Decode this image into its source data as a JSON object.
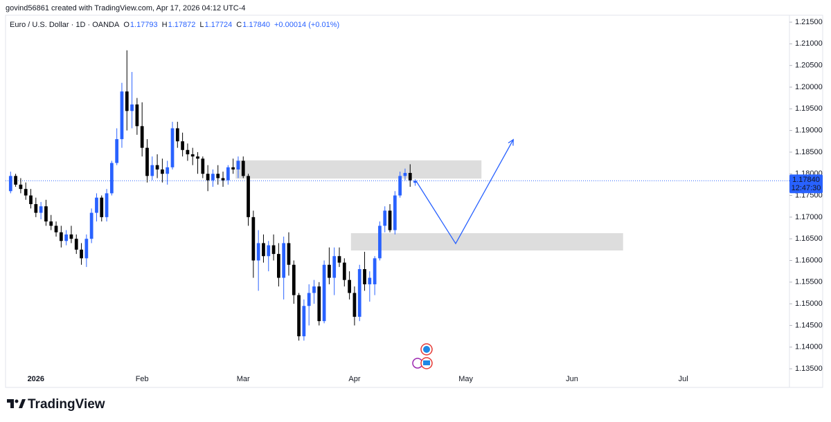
{
  "header": {
    "attribution": "govind56861 created with TradingView.com, Apr 17, 2026 04:12 UTC-4"
  },
  "chart_data": {
    "type": "candlestick",
    "title": "Euro / U.S. Dollar · 1D · OANDA",
    "legend": [
      {
        "label": "O",
        "value": "1.17793"
      },
      {
        "label": "H",
        "value": "1.17872"
      },
      {
        "label": "L",
        "value": "1.17724"
      },
      {
        "label": "C",
        "value": "1.17840"
      }
    ],
    "change": "+0.00014 (+0.01%)",
    "bull_color": "#2962ff",
    "bear_color": "#000000",
    "x": [
      0,
      1,
      2,
      3,
      4,
      5,
      6,
      7,
      8,
      9,
      10,
      11,
      12,
      13,
      14,
      15,
      16,
      17,
      18,
      19,
      20,
      21,
      22,
      23,
      24,
      25,
      26,
      27,
      28,
      29,
      30,
      31,
      32,
      33,
      34,
      35,
      36,
      37,
      38,
      39,
      40,
      41,
      42,
      43,
      44,
      45,
      46,
      47,
      48,
      49,
      50,
      51,
      52,
      53,
      54,
      55,
      56,
      57,
      58,
      59,
      60,
      61,
      62,
      63,
      64,
      65,
      66,
      67,
      68,
      69,
      70,
      71,
      72,
      73,
      74,
      75,
      76,
      77,
      78,
      79,
      80
    ],
    "open": [
      1.176,
      1.1795,
      1.1775,
      1.1765,
      1.175,
      1.173,
      1.171,
      1.1725,
      1.169,
      1.168,
      1.1665,
      1.1645,
      1.166,
      1.165,
      1.1625,
      1.1605,
      1.165,
      1.171,
      1.1745,
      1.17,
      1.1755,
      1.1825,
      1.188,
      1.199,
      1.1945,
      1.196,
      1.191,
      1.186,
      1.1795,
      1.182,
      1.181,
      1.18,
      1.1815,
      1.1905,
      1.1875,
      1.1855,
      1.1845,
      1.184,
      1.1835,
      1.18,
      1.1785,
      1.18,
      1.179,
      1.1785,
      1.1815,
      1.181,
      1.183,
      1.1795,
      1.17,
      1.16,
      1.164,
      1.161,
      1.1635,
      1.1615,
      1.156,
      1.164,
      1.159,
      1.152,
      1.1425,
      1.1495,
      1.1525,
      1.154,
      1.146,
      1.159,
      1.156,
      1.161,
      1.1595,
      1.1555,
      1.1525,
      1.147,
      1.158,
      1.1545,
      1.1545,
      1.1605,
      1.168,
      1.1715,
      1.167,
      1.175,
      1.1795,
      1.1802,
      1.17793
    ],
    "high": [
      1.1805,
      1.18,
      1.179,
      1.178,
      1.1765,
      1.1745,
      1.1735,
      1.174,
      1.1705,
      1.169,
      1.168,
      1.167,
      1.168,
      1.166,
      1.164,
      1.166,
      1.172,
      1.1755,
      1.175,
      1.1765,
      1.183,
      1.1905,
      1.201,
      1.2085,
      1.2035,
      1.1975,
      1.1965,
      1.188,
      1.184,
      1.1845,
      1.1835,
      1.183,
      1.192,
      1.192,
      1.1895,
      1.187,
      1.186,
      1.185,
      1.184,
      1.182,
      1.181,
      1.182,
      1.1805,
      1.182,
      1.1835,
      1.184,
      1.184,
      1.18,
      1.1715,
      1.167,
      1.166,
      1.1645,
      1.166,
      1.164,
      1.1655,
      1.1665,
      1.16,
      1.1525,
      1.151,
      1.1545,
      1.1555,
      1.155,
      1.16,
      1.163,
      1.163,
      1.163,
      1.1605,
      1.1575,
      1.154,
      1.159,
      1.162,
      1.1575,
      1.161,
      1.169,
      1.1725,
      1.173,
      1.176,
      1.1805,
      1.1812,
      1.1822,
      1.17872
    ],
    "low": [
      1.1755,
      1.177,
      1.1755,
      1.174,
      1.172,
      1.17,
      1.1695,
      1.168,
      1.167,
      1.1655,
      1.163,
      1.1635,
      1.164,
      1.1615,
      1.159,
      1.1585,
      1.164,
      1.169,
      1.169,
      1.169,
      1.175,
      1.182,
      1.186,
      1.19,
      1.1905,
      1.189,
      1.184,
      1.178,
      1.1785,
      1.179,
      1.178,
      1.1775,
      1.181,
      1.186,
      1.184,
      1.183,
      1.182,
      1.18,
      1.179,
      1.176,
      1.177,
      1.1775,
      1.177,
      1.1775,
      1.18,
      1.179,
      1.179,
      1.168,
      1.156,
      1.153,
      1.1595,
      1.1575,
      1.16,
      1.154,
      1.151,
      1.1565,
      1.15,
      1.1415,
      1.1415,
      1.145,
      1.15,
      1.145,
      1.1455,
      1.1545,
      1.152,
      1.1585,
      1.154,
      1.151,
      1.145,
      1.146,
      1.153,
      1.1505,
      1.152,
      1.16,
      1.1665,
      1.1665,
      1.166,
      1.1745,
      1.1785,
      1.177,
      1.17724
    ],
    "close": [
      1.1795,
      1.1775,
      1.1765,
      1.175,
      1.173,
      1.171,
      1.1725,
      1.169,
      1.168,
      1.1665,
      1.1645,
      1.166,
      1.165,
      1.1625,
      1.1605,
      1.165,
      1.171,
      1.1745,
      1.17,
      1.1755,
      1.1825,
      1.188,
      1.199,
      1.1945,
      1.196,
      1.191,
      1.186,
      1.1795,
      1.182,
      1.181,
      1.18,
      1.1815,
      1.1905,
      1.1875,
      1.1855,
      1.1845,
      1.184,
      1.1835,
      1.18,
      1.1785,
      1.18,
      1.179,
      1.1785,
      1.1815,
      1.181,
      1.183,
      1.1795,
      1.17,
      1.16,
      1.164,
      1.161,
      1.1635,
      1.1615,
      1.156,
      1.164,
      1.159,
      1.152,
      1.1425,
      1.1495,
      1.1525,
      1.154,
      1.146,
      1.159,
      1.156,
      1.161,
      1.1595,
      1.1555,
      1.1525,
      1.147,
      1.158,
      1.1545,
      1.156,
      1.1605,
      1.168,
      1.1715,
      1.167,
      1.175,
      1.1795,
      1.1802,
      1.1785,
      1.1784
    ],
    "xlim": [
      -1,
      154
    ],
    "xticks": [
      {
        "value": 5,
        "label": "2026"
      },
      {
        "value": 26,
        "label": "Feb"
      },
      {
        "value": 46,
        "label": "Mar"
      },
      {
        "value": 68,
        "label": "Apr"
      },
      {
        "value": 90,
        "label": "May"
      },
      {
        "value": 111,
        "label": "Jun"
      },
      {
        "value": 133,
        "label": "Jul"
      }
    ],
    "ylim": [
      1.1307,
      1.2166
    ],
    "yticks": [
      {
        "value": 1.135,
        "label": "1.13500"
      },
      {
        "value": 1.14,
        "label": "1.14000"
      },
      {
        "value": 1.145,
        "label": "1.14500"
      },
      {
        "value": 1.15,
        "label": "1.15000"
      },
      {
        "value": 1.155,
        "label": "1.15500"
      },
      {
        "value": 1.16,
        "label": "1.16000"
      },
      {
        "value": 1.165,
        "label": "1.16500"
      },
      {
        "value": 1.17,
        "label": "1.17000"
      },
      {
        "value": 1.175,
        "label": "1.17500"
      },
      {
        "value": 1.18,
        "label": "1.18000"
      },
      {
        "value": 1.185,
        "label": "1.18500"
      },
      {
        "value": 1.19,
        "label": "1.19000"
      },
      {
        "value": 1.195,
        "label": "1.19500"
      },
      {
        "value": 1.2,
        "label": "1.20000"
      },
      {
        "value": 1.205,
        "label": "1.20500"
      },
      {
        "value": 1.21,
        "label": "1.21000"
      },
      {
        "value": 1.215,
        "label": "1.21500"
      }
    ],
    "grid": false,
    "last_price": {
      "value": 1.1784,
      "label": "1.17840",
      "countdown": "12:47:30"
    },
    "zones": [
      {
        "x": [
          44.5,
          93.1
        ],
        "y": [
          1.1789,
          1.1831
        ],
        "color": "#d9d9d9"
      },
      {
        "x": [
          67.3,
          121.1
        ],
        "y": [
          1.1623,
          1.1663
        ],
        "color": "#d9d9d9"
      }
    ],
    "projection": {
      "x": [
        80.2,
        88,
        99.4
      ],
      "y": [
        1.1783,
        1.1639,
        1.1879
      ],
      "color": "#2962ff"
    }
  },
  "footer": {
    "brand": "TradingView"
  }
}
